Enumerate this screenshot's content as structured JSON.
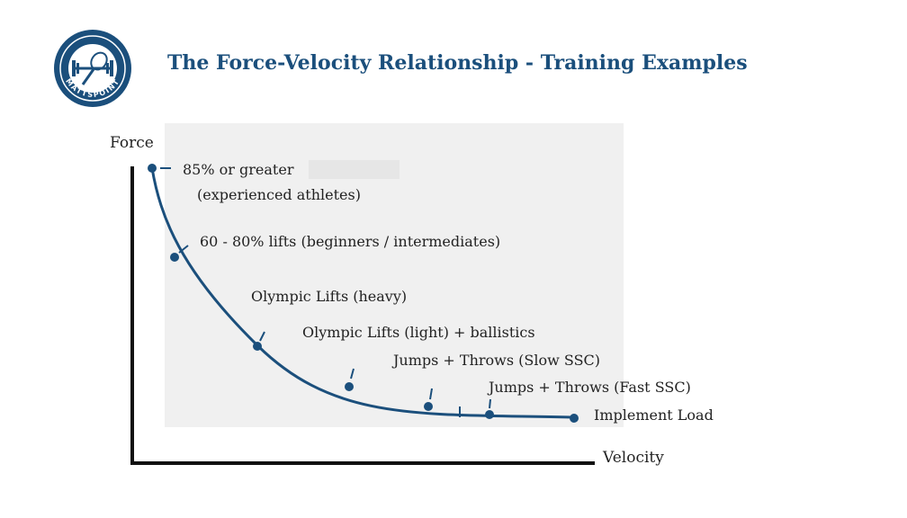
{
  "title": "The Force-Velocity Relationship - Training Examples",
  "logo": {
    "text": "MATTSPOINT",
    "icon": "barbell-and-racket-badge"
  },
  "axes": {
    "y_label": "Force",
    "x_label": "Velocity"
  },
  "points": [
    {
      "name": "85% or greater",
      "label_lines": [
        "85% or greater",
        "(experienced athletes)"
      ]
    },
    {
      "name": "60-80% lifts",
      "label_lines": [
        "60 - 80% lifts (beginners / intermediates)"
      ]
    },
    {
      "name": "Olympic Lifts (heavy)",
      "label_lines": [
        "Olympic Lifts (heavy)"
      ]
    },
    {
      "name": "Olympic Lifts (light) + ballistics",
      "label_lines": [
        "Olympic Lifts (light) + ballistics"
      ]
    },
    {
      "name": "Jumps + Throws (Slow SSC)",
      "label_lines": [
        "Jumps + Throws (Slow SSC)"
      ]
    },
    {
      "name": "Jumps + Throws (Fast SSC)",
      "label_lines": [
        "Jumps + Throws (Fast SSC)"
      ]
    },
    {
      "name": "Implement Load",
      "label_lines": [
        "Implement Load"
      ]
    }
  ],
  "colors": {
    "curve": "#1b4f7c",
    "title": "#1b4f7c",
    "panel": "#f0f0f0",
    "axis": "#111111",
    "text": "#222222"
  }
}
